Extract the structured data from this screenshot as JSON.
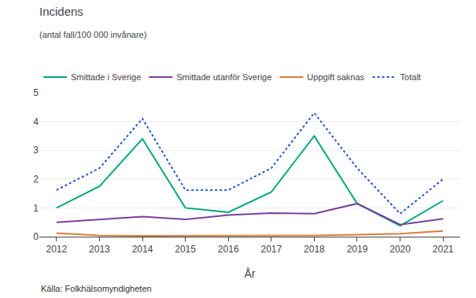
{
  "chart_data": {
    "type": "line",
    "title": "Incidens",
    "subtitle": "(antal fall/100 000 invånare)",
    "x_label": "År",
    "x": [
      2012,
      2013,
      2014,
      2015,
      2016,
      2017,
      2018,
      2019,
      2020,
      2021
    ],
    "series": [
      {
        "name": "Smittade i Sverige",
        "color": "#00a87a",
        "line_style": "solid",
        "values": [
          1.0,
          1.75,
          3.4,
          1.0,
          0.85,
          1.55,
          3.5,
          1.15,
          0.38,
          1.25
        ]
      },
      {
        "name": "Smittade utanför Sverige",
        "color": "#7b3f9e",
        "line_style": "solid",
        "values": [
          0.5,
          0.6,
          0.7,
          0.6,
          0.75,
          0.82,
          0.8,
          1.15,
          0.42,
          0.62
        ]
      },
      {
        "name": "Uppgift saknas",
        "color": "#e07b39",
        "line_style": "solid",
        "values": [
          0.12,
          0.04,
          0.03,
          0.03,
          0.03,
          0.03,
          0.04,
          0.07,
          0.1,
          0.2
        ]
      },
      {
        "name": "Totalt",
        "color": "#2255cc",
        "line_style": "dotted",
        "values": [
          1.62,
          2.38,
          4.1,
          1.62,
          1.62,
          2.38,
          4.3,
          2.38,
          0.8,
          2.0
        ]
      }
    ],
    "xlim": [
      2011.6,
      2021.4
    ],
    "xticks": [
      2012,
      2013,
      2014,
      2015,
      2016,
      2017,
      2018,
      2019,
      2020,
      2021
    ],
    "ylim": [
      0,
      5
    ],
    "yticks": [
      0,
      1,
      2,
      3,
      4,
      5
    ],
    "grid": true,
    "legend": "top",
    "annotations": [
      "Källa: Folkhälsomyndigheten"
    ]
  }
}
